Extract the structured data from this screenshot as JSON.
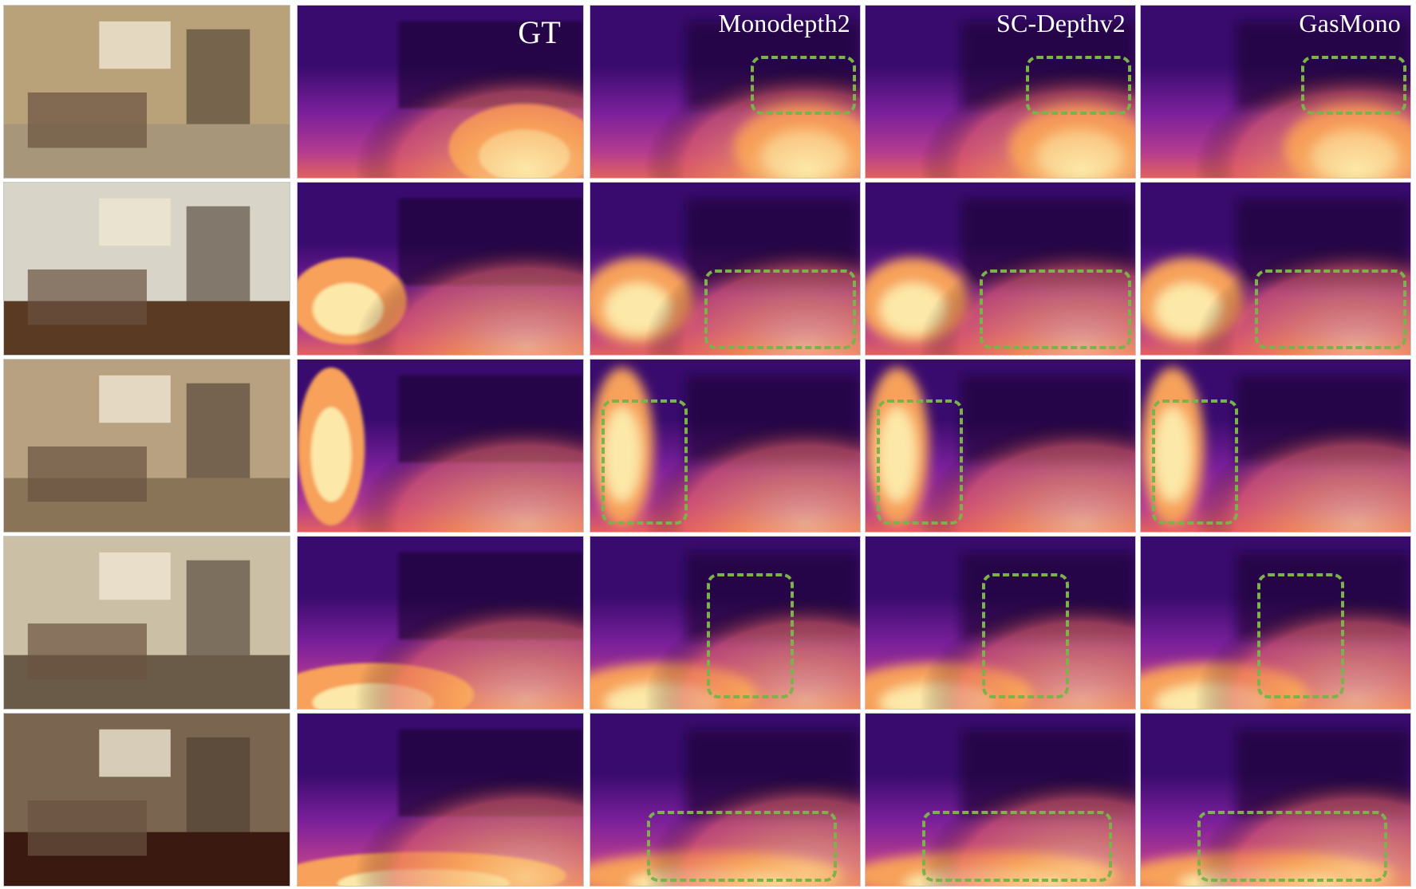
{
  "figure": {
    "columns": [
      "",
      "GT",
      "Monodepth2",
      "SC-Depthv2",
      "GasMono"
    ],
    "highlight_color": "#7bb24a",
    "colormap": [
      "#0d0a2a",
      "#3a0b6e",
      "#7a1f9a",
      "#b43b8f",
      "#e2625e",
      "#f7a15a",
      "#fce8a8"
    ]
  }
}
